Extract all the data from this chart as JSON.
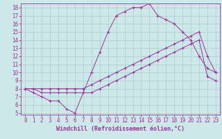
{
  "xlabel": "Windchill (Refroidissement éolien,°C)",
  "bg_color": "#cce8e8",
  "grid_color": "#aacccc",
  "line_color": "#993399",
  "xlim": [
    -0.5,
    23.5
  ],
  "ylim": [
    4.8,
    18.5
  ],
  "xticks": [
    0,
    1,
    2,
    3,
    4,
    5,
    6,
    7,
    8,
    9,
    10,
    11,
    12,
    13,
    14,
    15,
    16,
    17,
    18,
    19,
    20,
    21,
    22,
    23
  ],
  "yticks": [
    5,
    6,
    7,
    8,
    9,
    10,
    11,
    12,
    13,
    14,
    15,
    16,
    17,
    18
  ],
  "line1_x": [
    0,
    1,
    2,
    3,
    4,
    5,
    6,
    7,
    8,
    9,
    10,
    11,
    12,
    13,
    14,
    15,
    16,
    17,
    18,
    19,
    20,
    21,
    22,
    23
  ],
  "line1_y": [
    8.0,
    7.5,
    7.0,
    6.5,
    6.5,
    5.5,
    5.0,
    7.5,
    10.0,
    12.5,
    15.0,
    17.0,
    17.5,
    18.0,
    18.0,
    18.5,
    17.0,
    16.5,
    16.0,
    15.0,
    14.0,
    12.0,
    10.5,
    10.0
  ],
  "line2_x": [
    0,
    1,
    2,
    3,
    4,
    5,
    6,
    7,
    8,
    9,
    10,
    11,
    12,
    13,
    14,
    15,
    16,
    17,
    18,
    19,
    20,
    21,
    22,
    23
  ],
  "line2_y": [
    8.0,
    8.0,
    8.0,
    8.0,
    8.0,
    8.0,
    8.0,
    8.0,
    8.5,
    9.0,
    9.5,
    10.0,
    10.5,
    11.0,
    11.5,
    12.0,
    12.5,
    13.0,
    13.5,
    14.0,
    14.5,
    15.0,
    12.0,
    10.0
  ],
  "line3_x": [
    0,
    1,
    2,
    3,
    4,
    5,
    6,
    7,
    8,
    9,
    10,
    11,
    12,
    13,
    14,
    15,
    16,
    17,
    18,
    19,
    20,
    21,
    22,
    23
  ],
  "line3_y": [
    8.0,
    8.0,
    7.5,
    7.5,
    7.5,
    7.5,
    7.5,
    7.5,
    7.5,
    8.0,
    8.5,
    9.0,
    9.5,
    10.0,
    10.5,
    11.0,
    11.5,
    12.0,
    12.5,
    13.0,
    13.5,
    14.0,
    9.5,
    9.0
  ],
  "tick_fontsize": 5.5,
  "xlabel_fontsize": 6.0,
  "marker": "+"
}
